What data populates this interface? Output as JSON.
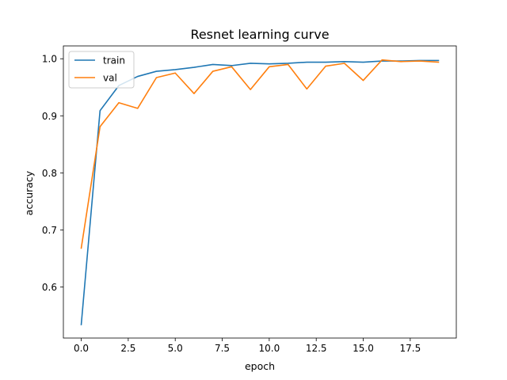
{
  "chart_data": {
    "type": "line",
    "title": "Resnet learning curve",
    "xlabel": "epoch",
    "ylabel": "accuracy",
    "xlim": [
      -0.95,
      19.95
    ],
    "ylim": [
      0.5105,
      1.0225
    ],
    "xticks": [
      0.0,
      2.5,
      5.0,
      7.5,
      10.0,
      12.5,
      15.0,
      17.5
    ],
    "xtick_labels": [
      "0.0",
      "2.5",
      "5.0",
      "7.5",
      "10.0",
      "12.5",
      "15.0",
      "17.5"
    ],
    "yticks": [
      0.6,
      0.7,
      0.8,
      0.9,
      1.0
    ],
    "ytick_labels": [
      "0.6",
      "0.7",
      "0.8",
      "0.9",
      "1.0"
    ],
    "grid": false,
    "legend_position": "top-left",
    "x": [
      0,
      1,
      2,
      3,
      4,
      5,
      6,
      7,
      8,
      9,
      10,
      11,
      12,
      13,
      14,
      15,
      16,
      17,
      18,
      19
    ],
    "series": [
      {
        "name": "train",
        "color": "#1f77b4",
        "values": [
          0.534,
          0.909,
          0.953,
          0.969,
          0.978,
          0.981,
          0.985,
          0.99,
          0.988,
          0.992,
          0.991,
          0.992,
          0.994,
          0.994,
          0.995,
          0.994,
          0.996,
          0.996,
          0.997,
          0.997
        ]
      },
      {
        "name": "val",
        "color": "#ff7f0e",
        "values": [
          0.668,
          0.881,
          0.923,
          0.913,
          0.967,
          0.975,
          0.939,
          0.978,
          0.986,
          0.946,
          0.986,
          0.99,
          0.947,
          0.987,
          0.992,
          0.962,
          0.998,
          0.995,
          0.996,
          0.994
        ]
      }
    ]
  }
}
